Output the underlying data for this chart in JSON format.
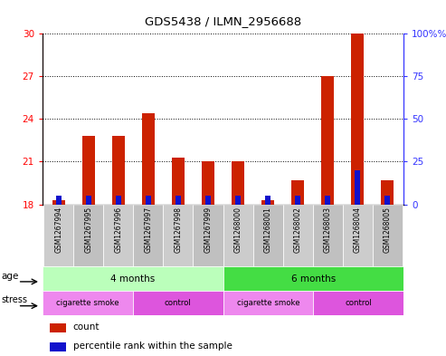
{
  "title": "GDS5438 / ILMN_2956688",
  "samples": [
    "GSM1267994",
    "GSM1267995",
    "GSM1267996",
    "GSM1267997",
    "GSM1267998",
    "GSM1267999",
    "GSM1268000",
    "GSM1268001",
    "GSM1268002",
    "GSM1268003",
    "GSM1268004",
    "GSM1268005"
  ],
  "counts": [
    18.3,
    22.8,
    22.8,
    24.4,
    21.3,
    21.0,
    21.0,
    18.3,
    19.7,
    27.0,
    30.0,
    19.7
  ],
  "percentile_ranks": [
    5,
    5,
    5,
    5,
    5,
    5,
    5,
    5,
    5,
    5,
    20,
    5
  ],
  "ylim_left": [
    18,
    30
  ],
  "ylim_right": [
    0,
    100
  ],
  "yticks_left": [
    18,
    21,
    24,
    27,
    30
  ],
  "yticks_right": [
    0,
    25,
    50,
    75,
    100
  ],
  "bar_color": "#cc2200",
  "blue_color": "#1111cc",
  "background_color": "#ffffff",
  "age_groups": [
    {
      "label": "4 months",
      "start": 0,
      "end": 6,
      "color": "#bbffbb"
    },
    {
      "label": "6 months",
      "start": 6,
      "end": 12,
      "color": "#44dd44"
    }
  ],
  "stress_colors": [
    "#ee88ee",
    "#dd55dd",
    "#ee88ee",
    "#dd55dd"
  ],
  "stress_labels": [
    "cigarette smoke",
    "control",
    "cigarette smoke",
    "control"
  ],
  "stress_ranges": [
    [
      0,
      3
    ],
    [
      3,
      6
    ],
    [
      6,
      9
    ],
    [
      9,
      12
    ]
  ]
}
